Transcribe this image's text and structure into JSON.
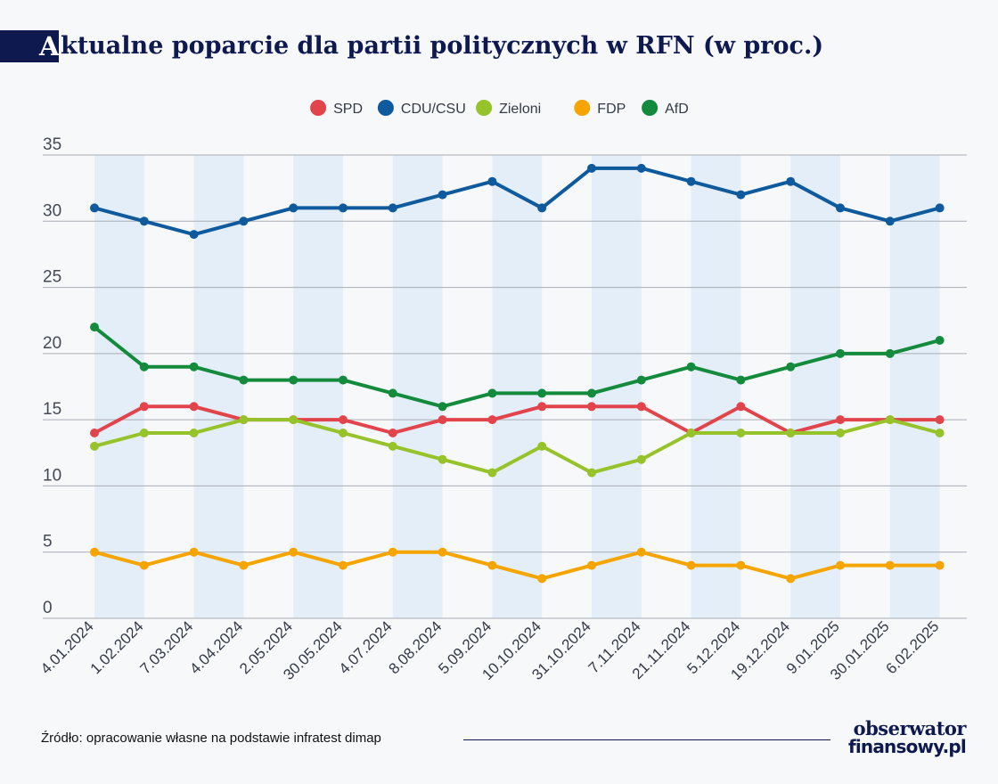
{
  "header": {
    "title_cap": "A",
    "title_rest": "ktualne poparcie dla partii politycznych w RFN (w proc.)"
  },
  "footer": {
    "source": "Źródło: opracowanie własne na podstawie infratest dimap",
    "logo_line1": "obserwator",
    "logo_line2": "finansowy.pl"
  },
  "chart_data": {
    "type": "line",
    "title": "Aktualne poparcie dla partii politycznych w RFN (w proc.)",
    "xlabel": "",
    "ylabel": "",
    "ylim": [
      0,
      35
    ],
    "yticks": [
      "0",
      "5",
      "10",
      "15",
      "20",
      "25",
      "30",
      "35"
    ],
    "grid": "horizontal",
    "legend_position": "top-center",
    "band_color": "#e3eef8",
    "categories": [
      "4.01.2024",
      "1.02.2024",
      "7.03.2024",
      "4.04.2024",
      "2.05.2024",
      "30.05.2024",
      "4.07.2024",
      "8.08.2024",
      "5.09.2024",
      "10.10.2024",
      "31.10.2024",
      "7.11.2024",
      "21.11.2024",
      "5.12.2024",
      "19.12.2024",
      "9.01.2025",
      "30.01.2025",
      "6.02.2025"
    ],
    "series": [
      {
        "name": "SPD",
        "color": "#e2444c",
        "values": [
          14,
          16,
          16,
          15,
          15,
          15,
          14,
          15,
          15,
          16,
          16,
          16,
          14,
          16,
          14,
          15,
          15,
          15
        ]
      },
      {
        "name": "CDU/CSU",
        "color": "#0e5a9c",
        "values": [
          31,
          30,
          29,
          30,
          31,
          31,
          31,
          32,
          33,
          31,
          34,
          34,
          33,
          32,
          33,
          31,
          30,
          31
        ]
      },
      {
        "name": "Zieloni",
        "color": "#97c32a",
        "values": [
          13,
          14,
          14,
          15,
          15,
          14,
          13,
          12,
          11,
          13,
          11,
          12,
          14,
          14,
          14,
          14,
          15,
          14
        ]
      },
      {
        "name": "FDP",
        "color": "#f6a400",
        "values": [
          5,
          4,
          5,
          4,
          5,
          4,
          5,
          5,
          4,
          3,
          4,
          5,
          4,
          4,
          3,
          4,
          4,
          4
        ]
      },
      {
        "name": "AfD",
        "color": "#138a3c",
        "values": [
          22,
          19,
          19,
          18,
          18,
          18,
          17,
          16,
          17,
          17,
          17,
          18,
          19,
          18,
          19,
          20,
          20,
          21
        ]
      }
    ]
  }
}
